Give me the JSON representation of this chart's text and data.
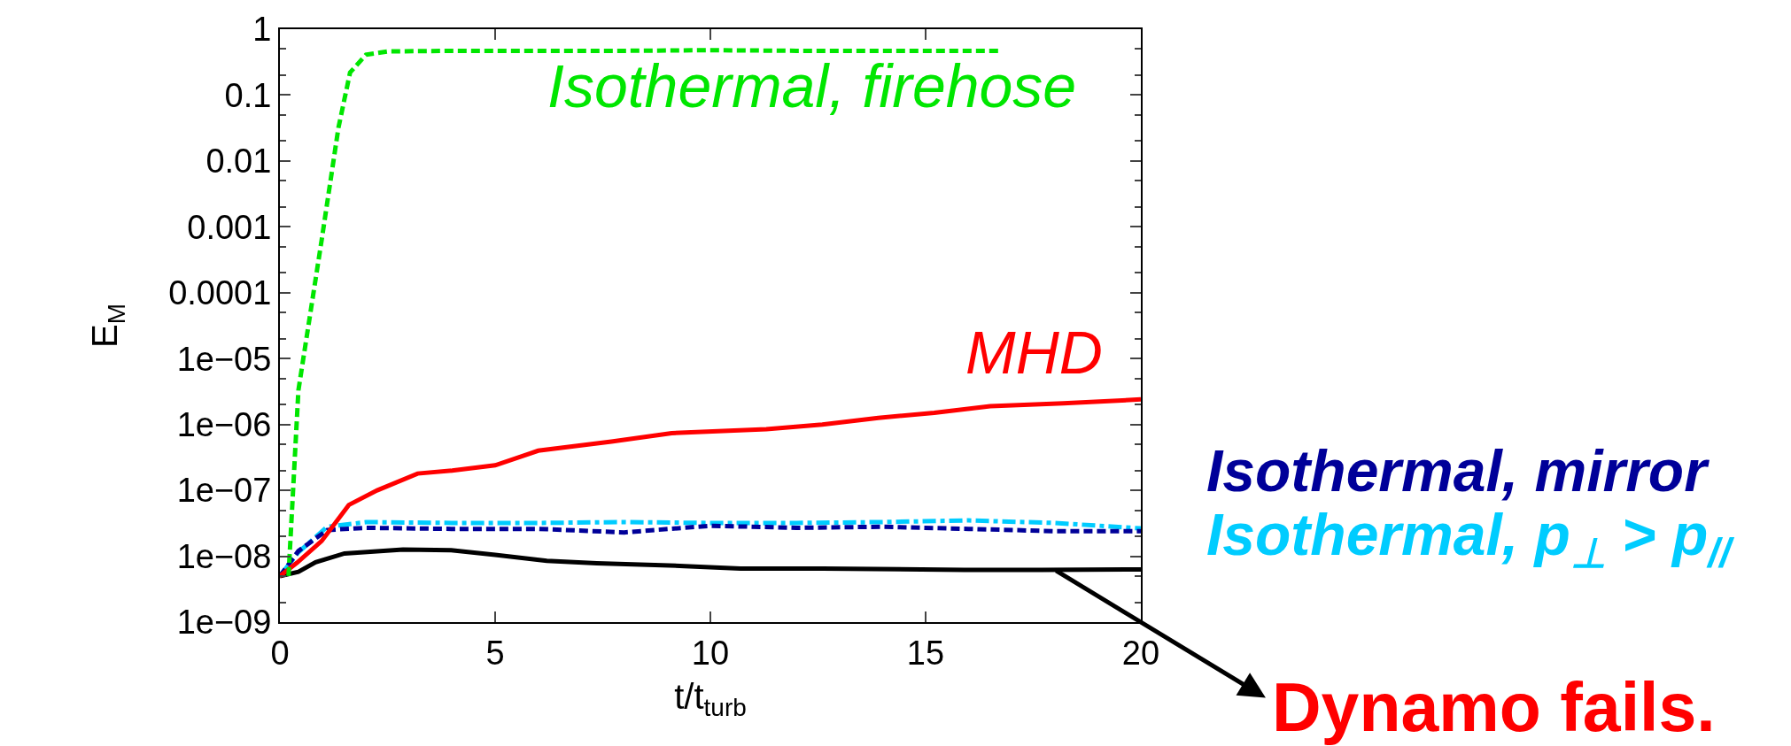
{
  "chart_data": {
    "type": "line",
    "xlabel": "t/t$_{turb}$",
    "ylabel": "E$_{M}$",
    "log": "y",
    "legend": false,
    "marker": "none",
    "xlim": [
      0,
      20
    ],
    "xticks": [
      0,
      5,
      10,
      15,
      20
    ],
    "ylim": [
      1e-09,
      1
    ],
    "yticks": [
      1,
      0.1,
      0.01,
      0.001,
      0.0001,
      {
        "value": 1e-05,
        "label": "1e−05"
      },
      {
        "value": 1e-06,
        "label": "1e−06"
      },
      {
        "value": 1e-07,
        "label": "1e−07"
      },
      {
        "value": 1e-08,
        "label": "1e−08"
      },
      {
        "value": 1e-09,
        "label": "1e−09"
      }
    ],
    "series": [
      {
        "name": "Isothermal, firehose",
        "color": "#00e600",
        "line_style": "dashed",
        "x": [
          0.2,
          0.43,
          0.97,
          1.36,
          1.63,
          2.0,
          2.5,
          4,
          6,
          8,
          10,
          12,
          14,
          16.7
        ],
        "values": [
          5e-09,
          3.3e-06,
          0.00063,
          0.032,
          0.22,
          0.41,
          0.46,
          0.47,
          0.47,
          0.47,
          0.48,
          0.47,
          0.47,
          0.47
        ]
      },
      {
        "name": "MHD",
        "color": "#ff0000",
        "line_style": "solid",
        "x": [
          0,
          0.4,
          0.97,
          1.6,
          2.26,
          3.2,
          4.0,
          5.0,
          6.0,
          7.7,
          9.1,
          11.3,
          12.6,
          13.9,
          15.2,
          16.5,
          18.2,
          20
        ],
        "values": [
          5e-09,
          8e-09,
          1.7e-08,
          6e-08,
          1e-07,
          1.8e-07,
          2e-07,
          2.4e-07,
          4e-07,
          5.5e-07,
          7.4e-07,
          8.5e-07,
          1e-06,
          1.26e-06,
          1.5e-06,
          1.9e-06,
          2.1e-06,
          2.4e-06
        ]
      },
      {
        "color": "#000000",
        "line_style": "solid",
        "x": [
          0,
          0.43,
          0.83,
          1.5,
          2.86,
          3.98,
          5,
          6.2,
          7.36,
          9.4,
          10.7,
          12.6,
          15.9,
          17.7,
          20
        ],
        "values": [
          5e-09,
          5.8e-09,
          8.1e-09,
          1.1e-08,
          1.26e-08,
          1.23e-08,
          1.05e-08,
          8.5e-09,
          7.8e-09,
          7.1e-09,
          6.5e-09,
          6.5e-09,
          6.2e-09,
          6.2e-09,
          6.3e-09
        ]
      },
      {
        "name": "Isothermal, mirror",
        "color": "#000099",
        "line_style": "dashed",
        "x": [
          0,
          0.43,
          1.1,
          2,
          4,
          6,
          8,
          10,
          12,
          14,
          16,
          18,
          20
        ],
        "values": [
          5e-09,
          1.2e-08,
          2.5e-08,
          2.7e-08,
          2.6e-08,
          2.6e-08,
          2.3e-08,
          2.9e-08,
          2.7e-08,
          2.8e-08,
          2.6e-08,
          2.4e-08,
          2.4e-08
        ]
      },
      {
        "name": "Isothermal, p$_{⊥}$ > p$_{//}$",
        "color": "#00ccff",
        "line_style": "dashdot",
        "x": [
          0,
          0.43,
          1.1,
          2,
          4,
          6,
          8,
          10,
          12,
          14,
          16,
          18,
          20
        ],
        "values": [
          5e-09,
          1.15e-08,
          2.8e-08,
          3.3e-08,
          3.2e-08,
          3.2e-08,
          3.3e-08,
          3.2e-08,
          3.2e-08,
          3.3e-08,
          3.5e-08,
          3.2e-08,
          2.65e-08
        ]
      }
    ],
    "annotations": [
      {
        "text": "Dynamo fails.",
        "x": 18,
        "y": 6.2e-09
      }
    ]
  }
}
